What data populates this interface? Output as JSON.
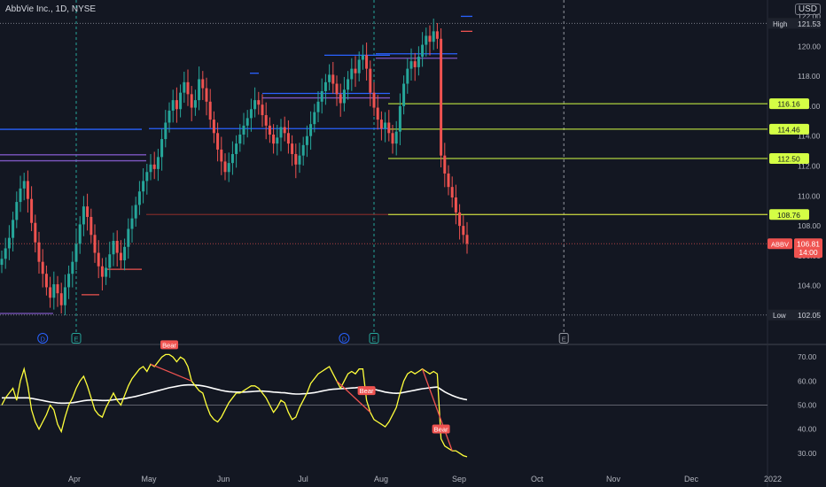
{
  "header": {
    "title": "AbbVie Inc., 1D, NYSE",
    "currency": "USD"
  },
  "colors": {
    "up": "#26a69a",
    "down": "#ef5350",
    "rsi": "#ffff3b",
    "rsi_ma": "#ffffff",
    "level": "#d4ff45",
    "blue_line": "#2962ff",
    "purple_line": "#7e57c2"
  },
  "chart_data": [
    {
      "type": "candlestick",
      "title": "AbbVie Inc., 1D, NYSE",
      "ylim": [
        101.5,
        122.5
      ],
      "y_ticks": [
        104.0,
        106.0,
        108.0,
        110.0,
        112.0,
        114.0,
        116.0,
        118.0,
        120.0,
        122.0
      ],
      "y_tick_labels": [
        "104.00",
        "106.00",
        "108.00",
        "110.00",
        "112.00",
        "114.00",
        "116.00",
        "118.00",
        "120.00",
        "122.00"
      ],
      "x_ticks": [
        "Apr",
        "May",
        "Jun",
        "Jul",
        "Aug",
        "Sep",
        "Oct",
        "Nov",
        "Dec",
        "2022"
      ],
      "closes": [
        105.8,
        106.5,
        107.2,
        108.4,
        109.6,
        110.5,
        111.0,
        109.8,
        108.2,
        106.9,
        105.6,
        104.8,
        103.9,
        103.2,
        104.1,
        103.5,
        102.7,
        103.9,
        104.8,
        105.6,
        106.8,
        108.1,
        109.3,
        108.6,
        107.4,
        106.2,
        105.3,
        104.6,
        105.2,
        106.1,
        107.0,
        106.2,
        105.7,
        106.6,
        107.8,
        108.5,
        109.4,
        110.3,
        111.0,
        111.6,
        112.1,
        111.8,
        112.6,
        113.8,
        114.9,
        115.7,
        116.4,
        115.8,
        116.9,
        117.6,
        116.8,
        115.9,
        116.4,
        117.8,
        117.2,
        116.3,
        115.1,
        114.2,
        113.1,
        112.3,
        111.6,
        112.2,
        112.8,
        113.5,
        114.1,
        114.7,
        115.2,
        115.8,
        116.4,
        116.1,
        115.4,
        114.7,
        114.1,
        113.5,
        113.9,
        114.6,
        114.2,
        113.5,
        112.8,
        112.1,
        112.7,
        113.4,
        114.0,
        114.8,
        115.6,
        116.3,
        117.0,
        117.6,
        118.1,
        117.5,
        116.8,
        116.2,
        117.1,
        117.8,
        118.5,
        118.2,
        119.1,
        119.4,
        118.5,
        116.9,
        115.9,
        115.1,
        114.5,
        114.9,
        114.2,
        113.5,
        114.3,
        116.0,
        117.5,
        118.5,
        119.0,
        118.6,
        119.3,
        120.1,
        120.7,
        120.3,
        121.0,
        120.5,
        112.7,
        111.5,
        110.6,
        109.9,
        108.9,
        108.0,
        107.4,
        106.81
      ],
      "last_price": "106.81",
      "last_price_time": "14:00",
      "symbol": "ABBV",
      "high": {
        "label": "High",
        "value": "121.53"
      },
      "low": {
        "label": "Low",
        "value": "102.05"
      },
      "levels": [
        {
          "value": "116.16",
          "price": 116.16
        },
        {
          "value": "114.46",
          "price": 114.46
        },
        {
          "value": "112.50",
          "price": 112.5
        },
        {
          "value": "108.76",
          "price": 108.76
        }
      ],
      "event_markers": [
        {
          "label": "D",
          "kind": "dividend",
          "date_index": 11
        },
        {
          "label": "E",
          "kind": "earnings",
          "date_index": 20
        },
        {
          "label": "D",
          "kind": "dividend",
          "date_index": 92
        },
        {
          "label": "E",
          "kind": "earnings",
          "date_index": 100
        },
        {
          "label": "E",
          "kind": "earnings-future",
          "date_index": 151
        }
      ]
    },
    {
      "type": "line",
      "title": "RSI",
      "ylim": [
        27,
        73
      ],
      "y_ticks": [
        30,
        40,
        50,
        60,
        70
      ],
      "y_tick_labels": [
        "30.00",
        "40.00",
        "50.00",
        "60.00",
        "70.00"
      ],
      "reference_line": 50,
      "bear_labels": [
        {
          "text": "Bear",
          "index": 45
        },
        {
          "text": "Bear",
          "index": 98
        },
        {
          "text": "Bear",
          "index": 118
        }
      ],
      "series": [
        {
          "values": [
            50,
            53,
            55,
            57,
            52,
            60,
            65,
            58,
            48,
            43,
            40,
            43,
            46,
            50,
            48,
            42,
            39,
            45,
            50,
            53,
            57,
            60,
            62,
            58,
            53,
            48,
            46,
            45,
            49,
            52,
            55,
            52,
            50,
            54,
            58,
            61,
            63,
            65,
            66,
            64,
            67,
            66,
            68,
            70,
            71,
            71,
            70,
            68,
            70,
            69,
            66,
            60,
            58,
            56,
            55,
            50,
            46,
            44,
            43,
            45,
            48,
            51,
            53,
            55,
            55,
            56,
            57,
            58,
            58,
            57,
            55,
            53,
            50,
            47,
            49,
            52,
            51,
            47,
            44,
            45,
            49,
            52,
            55,
            59,
            61,
            63,
            64,
            65,
            66,
            63,
            60,
            57,
            60,
            63,
            64,
            63,
            65,
            65,
            52,
            47,
            44,
            43,
            42,
            41,
            43,
            46,
            49,
            55,
            60,
            63,
            64,
            63,
            64,
            65,
            64,
            63,
            64,
            63,
            36,
            33,
            32,
            31,
            31,
            30,
            29,
            28.5
          ]
        },
        {
          "values": [
            53,
            53,
            53,
            53,
            53,
            53,
            53,
            53,
            52.8,
            52.5,
            52.2,
            51.9,
            51.6,
            51.3,
            51.1,
            50.9,
            50.8,
            50.8,
            50.9,
            51.0,
            51.2,
            51.5,
            51.8,
            52.0,
            52.1,
            52.1,
            52.0,
            51.9,
            51.9,
            52.0,
            52.2,
            52.4,
            52.5,
            52.7,
            53.0,
            53.3,
            53.6,
            54.0,
            54.4,
            54.8,
            55.2,
            55.6,
            56.0,
            56.4,
            56.8,
            57.2,
            57.5,
            57.8,
            58.1,
            58.3,
            58.4,
            58.4,
            58.3,
            58.2,
            58.0,
            57.7,
            57.3,
            56.9,
            56.5,
            56.1,
            55.8,
            55.6,
            55.5,
            55.4,
            55.4,
            55.4,
            55.5,
            55.6,
            55.7,
            55.8,
            55.8,
            55.7,
            55.6,
            55.4,
            55.3,
            55.2,
            55.1,
            54.9,
            54.7,
            54.6,
            54.6,
            54.7,
            54.8,
            55.0,
            55.2,
            55.5,
            55.8,
            56.1,
            56.4,
            56.6,
            56.7,
            56.8,
            56.9,
            57.0,
            57.1,
            57.2,
            57.4,
            57.5,
            57.3,
            57.0,
            56.6,
            56.2,
            55.8,
            55.4,
            55.2,
            55.0,
            54.9,
            55.0,
            55.3,
            55.6,
            55.9,
            56.2,
            56.5,
            56.8,
            57.0,
            57.2,
            57.4,
            57.5,
            56.5,
            55.5,
            54.7,
            54.0,
            53.4,
            52.9,
            52.5,
            52.2
          ]
        }
      ]
    }
  ]
}
